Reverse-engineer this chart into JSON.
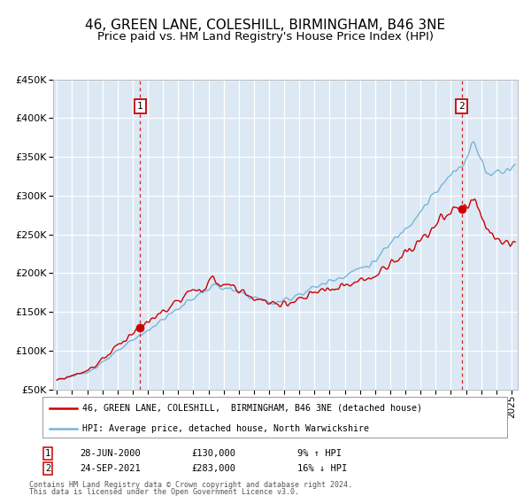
{
  "title": "46, GREEN LANE, COLESHILL, BIRMINGHAM, B46 3NE",
  "subtitle": "Price paid vs. HM Land Registry's House Price Index (HPI)",
  "title_fontsize": 11,
  "subtitle_fontsize": 9.5,
  "legend_line1": "46, GREEN LANE, COLESHILL,  BIRMINGHAM, B46 3NE (detached house)",
  "legend_line2": "HPI: Average price, detached house, North Warwickshire",
  "annotation1_date": "28-JUN-2000",
  "annotation1_price": 130000,
  "annotation1_hpi_pct": "9% ↑ HPI",
  "annotation2_date": "24-SEP-2021",
  "annotation2_price": 283000,
  "annotation2_hpi_pct": "16% ↓ HPI",
  "footer1": "Contains HM Land Registry data © Crown copyright and database right 2024.",
  "footer2": "This data is licensed under the Open Government Licence v3.0.",
  "hpi_color": "#7ab4d8",
  "price_color": "#cc0000",
  "annotation_color": "#cc0000",
  "plot_bg_color": "#dce9f5",
  "grid_color": "#ffffff",
  "ylim_min": 50000,
  "ylim_max": 450000,
  "ytick_step": 50000
}
